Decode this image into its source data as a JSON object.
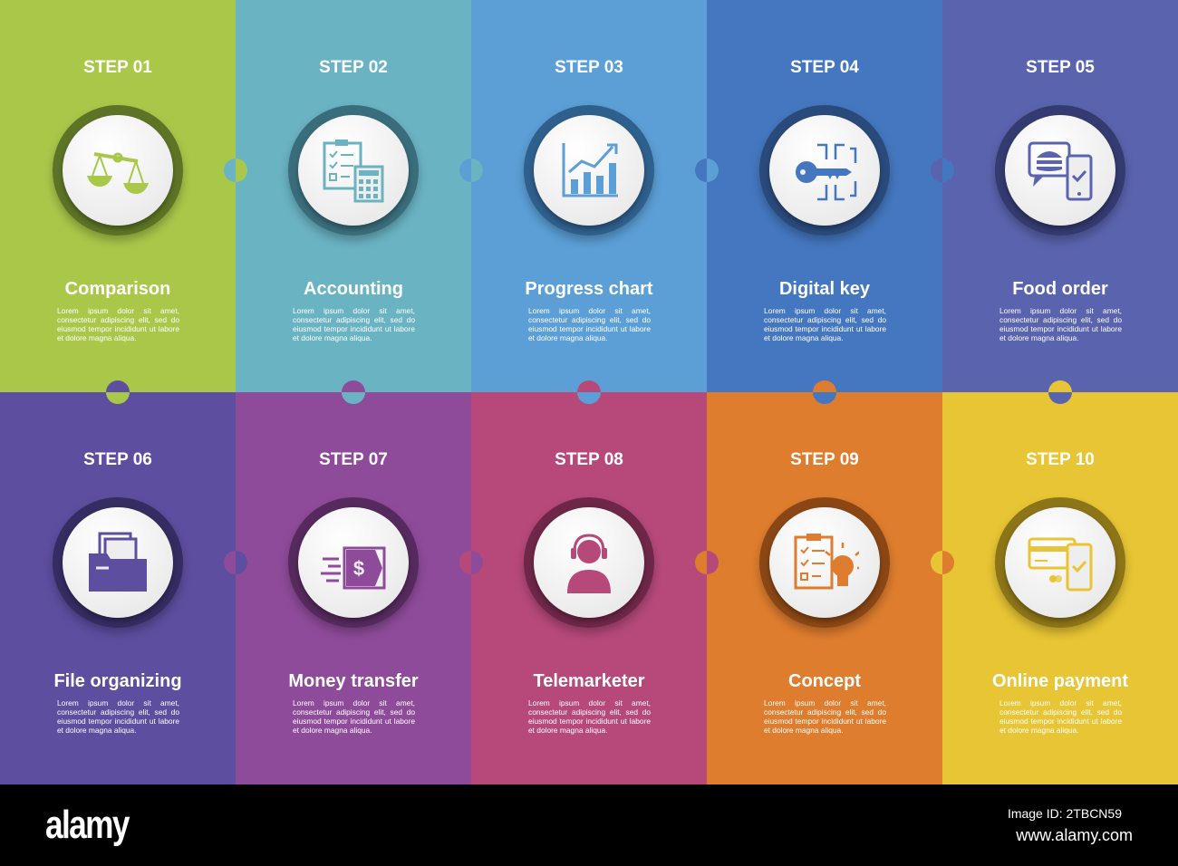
{
  "steps": [
    {
      "step": "STEP 01",
      "title": "Comparison",
      "icon": "scales-icon",
      "bg": "#a9c84a",
      "ring": "#5d7426",
      "accent": "#a9c84a"
    },
    {
      "step": "STEP 02",
      "title": "Accounting",
      "icon": "clipboard-calculator-icon",
      "bg": "#6ab3c3",
      "ring": "#3a6d7b",
      "accent": "#6ab3c3"
    },
    {
      "step": "STEP 03",
      "title": "Progress chart",
      "icon": "bar-chart-icon",
      "bg": "#5b9fd6",
      "ring": "#2f5f8c",
      "accent": "#5b9fd6"
    },
    {
      "step": "STEP 04",
      "title": "Digital key",
      "icon": "digital-key-icon",
      "bg": "#4477bf",
      "ring": "#2a4a7c",
      "accent": "#4477bf"
    },
    {
      "step": "STEP 05",
      "title": "Food order",
      "icon": "food-order-phone-icon",
      "bg": "#5a63ad",
      "ring": "#343b70",
      "accent": "#5a63ad"
    },
    {
      "step": "STEP 06",
      "title": "File organizing",
      "icon": "folder-icon",
      "bg": "#5d4e9f",
      "ring": "#352c62",
      "accent": "#5d4e9f"
    },
    {
      "step": "STEP 07",
      "title": "Money transfer",
      "icon": "money-transfer-icon",
      "bg": "#8e4b99",
      "ring": "#562a5e",
      "accent": "#8e4b99"
    },
    {
      "step": "STEP 08",
      "title": "Telemarketer",
      "icon": "headset-person-icon",
      "bg": "#b6497a",
      "ring": "#6e2748",
      "accent": "#b6497a"
    },
    {
      "step": "STEP 09",
      "title": "Concept",
      "icon": "clipboard-lightbulb-icon",
      "bg": "#de7d2e",
      "ring": "#8a4715",
      "accent": "#de7d2e"
    },
    {
      "step": "STEP 10",
      "title": "Online payment",
      "icon": "card-phone-icon",
      "bg": "#e8c534",
      "ring": "#8c7418",
      "accent": "#e8c534"
    }
  ],
  "body_text": "Lorem ipsum dolor sit amet, consectetur adipiscing elit, sed do eiusmod tempor incididunt ut labore et dolore magna aliqua.",
  "footer": {
    "logo": "alamy",
    "image_id": "Image ID: 2TBCN59",
    "site": "www.alamy.com"
  }
}
